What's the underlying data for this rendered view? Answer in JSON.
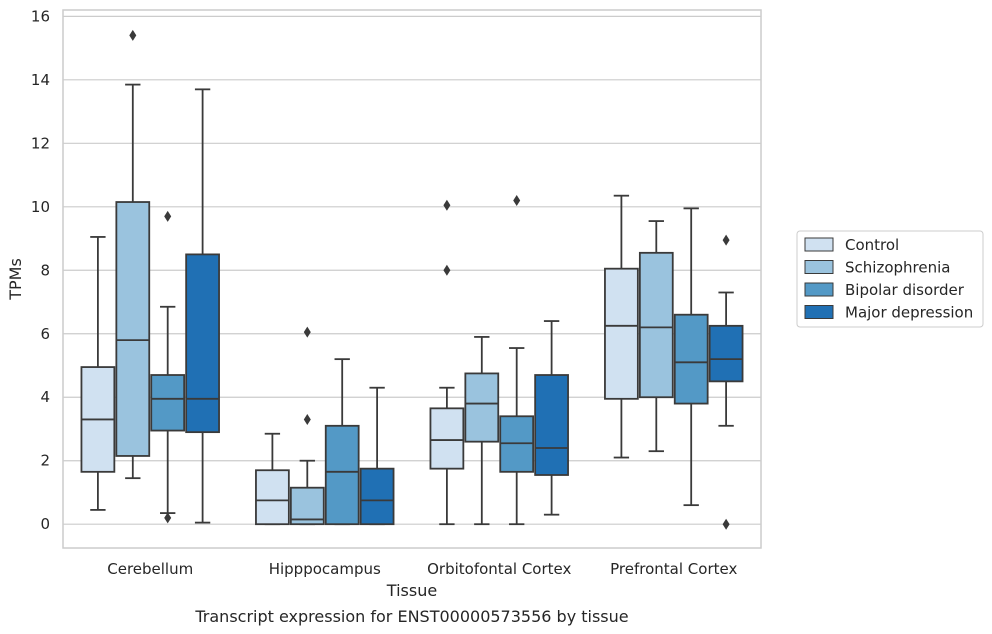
{
  "chart_data": {
    "type": "boxplot",
    "caption": "Transcript expression for ENST00000573556 by tissue",
    "xlabel": "Tissue",
    "ylabel": "TPMs",
    "ylim": [
      -0.75,
      16.2
    ],
    "yticks": [
      "0",
      "2",
      "4",
      "6",
      "8",
      "10",
      "12",
      "14",
      "16"
    ],
    "grid": "horizontal",
    "legend_placement": "right",
    "categories": [
      "Cerebellum",
      "Hipppocampus",
      "Orbitofontal Cortex",
      "Prefrontal Cortex"
    ],
    "series": [
      {
        "name": "Control",
        "color": "#d0e1f1",
        "boxes": [
          {
            "whisker_low": 0.45,
            "q1": 1.65,
            "median": 3.3,
            "q3": 4.95,
            "whisker_high": 9.05,
            "outliers": []
          },
          {
            "whisker_low": 0.0,
            "q1": 0.0,
            "median": 0.75,
            "q3": 1.7,
            "whisker_high": 2.85,
            "outliers": []
          },
          {
            "whisker_low": 0.0,
            "q1": 1.75,
            "median": 2.65,
            "q3": 3.65,
            "whisker_high": 4.3,
            "outliers": [
              10.05,
              8.0
            ]
          },
          {
            "whisker_low": 2.1,
            "q1": 3.95,
            "median": 6.25,
            "q3": 8.05,
            "whisker_high": 10.35,
            "outliers": []
          }
        ]
      },
      {
        "name": "Schizophrenia",
        "color": "#9ac3de",
        "boxes": [
          {
            "whisker_low": 1.45,
            "q1": 2.15,
            "median": 5.8,
            "q3": 10.15,
            "whisker_high": 13.85,
            "outliers": [
              15.4
            ]
          },
          {
            "whisker_low": 0.0,
            "q1": 0.0,
            "median": 0.15,
            "q3": 1.15,
            "whisker_high": 2.0,
            "outliers": [
              3.3,
              6.05
            ]
          },
          {
            "whisker_low": 0.0,
            "q1": 2.6,
            "median": 3.8,
            "q3": 4.75,
            "whisker_high": 5.9,
            "outliers": []
          },
          {
            "whisker_low": 2.3,
            "q1": 4.0,
            "median": 6.2,
            "q3": 8.55,
            "whisker_high": 9.55,
            "outliers": []
          }
        ]
      },
      {
        "name": "Bipolar disorder",
        "color": "#5399c6",
        "boxes": [
          {
            "whisker_low": 0.35,
            "q1": 2.95,
            "median": 3.95,
            "q3": 4.7,
            "whisker_high": 6.85,
            "outliers": [
              9.7,
              0.2
            ]
          },
          {
            "whisker_low": 0.0,
            "q1": 0.0,
            "median": 1.65,
            "q3": 3.1,
            "whisker_high": 5.2,
            "outliers": []
          },
          {
            "whisker_low": 0.0,
            "q1": 1.65,
            "median": 2.55,
            "q3": 3.4,
            "whisker_high": 5.55,
            "outliers": [
              10.2
            ]
          },
          {
            "whisker_low": 0.6,
            "q1": 3.8,
            "median": 5.1,
            "q3": 6.6,
            "whisker_high": 9.95,
            "outliers": []
          }
        ]
      },
      {
        "name": "Major depression",
        "color": "#2070b4",
        "boxes": [
          {
            "whisker_low": 0.05,
            "q1": 2.9,
            "median": 3.95,
            "q3": 8.5,
            "whisker_high": 13.7,
            "outliers": []
          },
          {
            "whisker_low": 0.0,
            "q1": 0.0,
            "median": 0.75,
            "q3": 1.75,
            "whisker_high": 4.3,
            "outliers": []
          },
          {
            "whisker_low": 0.3,
            "q1": 1.55,
            "median": 2.4,
            "q3": 4.7,
            "whisker_high": 6.4,
            "outliers": []
          },
          {
            "whisker_low": 3.1,
            "q1": 4.5,
            "median": 5.2,
            "q3": 6.25,
            "whisker_high": 7.3,
            "outliers": [
              8.95,
              0.0
            ]
          }
        ]
      }
    ]
  }
}
